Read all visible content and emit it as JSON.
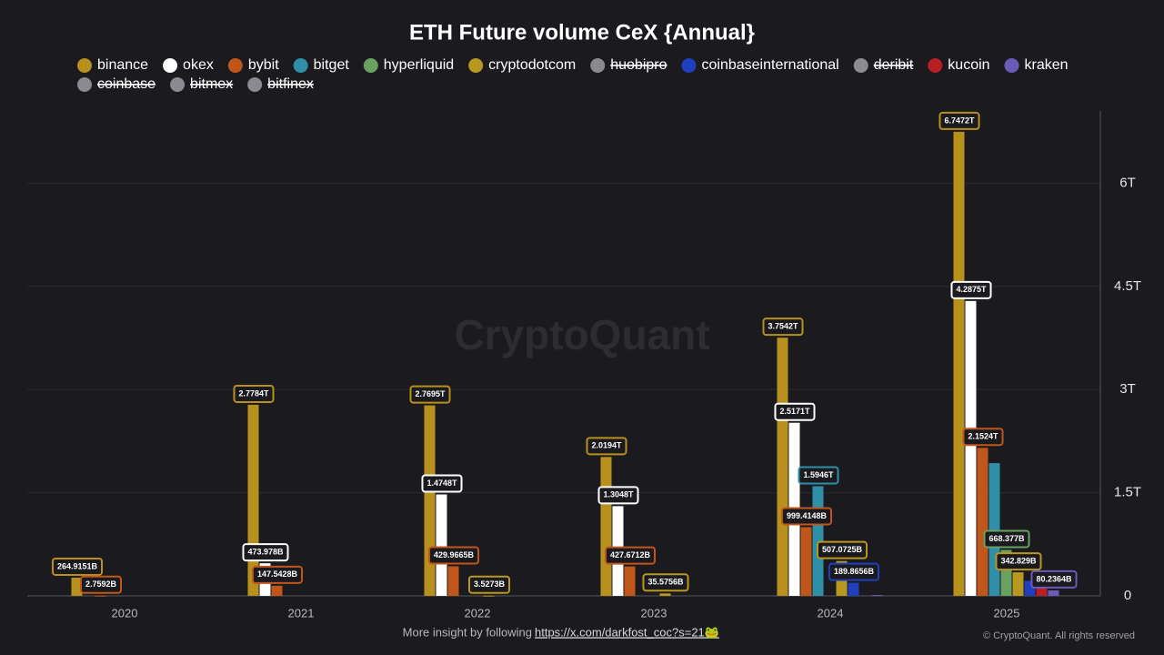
{
  "chart_data": {
    "type": "bar",
    "title": "ETH Future volume CeX {Annual}",
    "watermark": "CryptoQuant",
    "footer_text": "More insight by following",
    "footer_link": "https://x.com/darkfost_coc?s=21🐸",
    "copyright": "© CryptoQuant. All rights reserved",
    "categories": [
      "2020",
      "2021",
      "2022",
      "2023",
      "2024",
      "2025"
    ],
    "ylim": [
      0,
      7.05
    ],
    "yticks": [
      {
        "value": 0,
        "label": "0"
      },
      {
        "value": 1.5,
        "label": "1.5T"
      },
      {
        "value": 3,
        "label": "3T"
      },
      {
        "value": 4.5,
        "label": "4.5T"
      },
      {
        "value": 6,
        "label": "6T"
      }
    ],
    "grid": true,
    "series": [
      {
        "name": "binance",
        "color": "#b8901e",
        "values": [
          0.2649151,
          2.7784,
          2.7695,
          2.0194,
          3.7542,
          6.7472
        ],
        "value_labels": [
          "264.9151B",
          "2.7784T",
          "2.7695T",
          "2.0194T",
          "3.7542T",
          "6.7472T"
        ]
      },
      {
        "name": "okex",
        "color": "#ffffff",
        "values": [
          null,
          0.473978,
          1.4748,
          1.3048,
          2.5171,
          4.2875
        ],
        "value_labels": [
          null,
          "473.978B",
          "1.4748T",
          "1.3048T",
          "2.5171T",
          "4.2875T"
        ]
      },
      {
        "name": "bybit",
        "color": "#c0561a",
        "values": [
          0.0027592,
          0.1475428,
          0.4299665,
          0.4276712,
          0.9994148,
          2.1524
        ],
        "value_labels": [
          "2.7592B",
          "147.5428B",
          "429.9665B",
          "427.6712B",
          "999.4148B",
          "2.1524T"
        ]
      },
      {
        "name": "bitget",
        "color": "#2f8fa8",
        "values": [
          null,
          null,
          null,
          null,
          1.5946,
          1.93
        ],
        "value_labels": [
          null,
          null,
          null,
          null,
          "1.5946T",
          null
        ]
      },
      {
        "name": "hyperliquid",
        "color": "#6aa060",
        "values": [
          null,
          null,
          null,
          null,
          null,
          0.668377
        ],
        "value_labels": [
          null,
          null,
          null,
          null,
          null,
          "668.377B"
        ]
      },
      {
        "name": "cryptodotcom",
        "color": "#b8981e",
        "values": [
          null,
          null,
          0.0035273,
          0.0355756,
          0.5070725,
          0.342829
        ],
        "value_labels": [
          null,
          null,
          "3.5273B",
          "35.5756B",
          "507.0725B",
          "342.829B"
        ]
      },
      {
        "name": "huobipro",
        "color": "#8a8a90",
        "hidden": true,
        "values": [
          null,
          null,
          null,
          null,
          null,
          null
        ]
      },
      {
        "name": "coinbaseinternational",
        "color": "#1f3fbf",
        "values": [
          null,
          null,
          null,
          null,
          0.1898656,
          0.22
        ],
        "value_labels": [
          null,
          null,
          null,
          null,
          "189.8656B",
          null
        ]
      },
      {
        "name": "deribit",
        "color": "#8a8a90",
        "hidden": true,
        "values": [
          null,
          null,
          null,
          null,
          null,
          null
        ]
      },
      {
        "name": "kucoin",
        "color": "#b81f24",
        "values": [
          null,
          null,
          null,
          null,
          null,
          0.15
        ],
        "value_labels": [
          null,
          null,
          null,
          null,
          null,
          null
        ]
      },
      {
        "name": "kraken",
        "color": "#6b5bb8",
        "values": [
          null,
          null,
          null,
          null,
          0.012,
          0.0802364
        ],
        "value_labels": [
          null,
          null,
          null,
          null,
          null,
          "80.2364B"
        ]
      },
      {
        "name": "coinbase",
        "color": "#8a8a90",
        "hidden": true,
        "values": [
          null,
          null,
          null,
          null,
          null,
          null
        ]
      },
      {
        "name": "bitmex",
        "color": "#8a8a90",
        "hidden": true,
        "values": [
          null,
          null,
          null,
          null,
          null,
          null
        ]
      },
      {
        "name": "bitfinex",
        "color": "#8a8a90",
        "hidden": true,
        "values": [
          null,
          null,
          null,
          null,
          null,
          null
        ]
      }
    ]
  }
}
